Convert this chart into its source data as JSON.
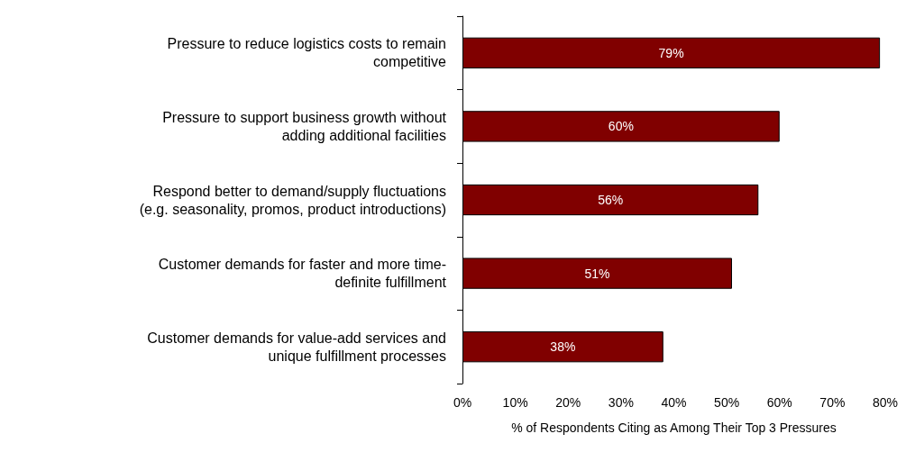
{
  "chart_data": {
    "type": "bar",
    "orientation": "horizontal",
    "categories": [
      "Pressure to reduce logistics costs to remain\ncompetitive",
      "Pressure to support business growth without\nadding additional facilities",
      "Respond better to demand/supply fluctuations\n(e.g. seasonality, promos, product introductions)",
      "Customer demands for faster and more time-\ndefinite fulfillment",
      "Customer demands for value-add services and\nunique fulfillment processes"
    ],
    "values": [
      79,
      60,
      56,
      51,
      38
    ],
    "value_labels": [
      "79%",
      "60%",
      "56%",
      "51%",
      "38%"
    ],
    "color": "#800000",
    "xlabel": "% of Respondents Citing as Among Their Top 3 Pressures",
    "xlim": [
      0,
      80
    ],
    "xticks": [
      {
        "value": 0,
        "label": "0%"
      },
      {
        "value": 10,
        "label": "10%"
      },
      {
        "value": 20,
        "label": "20%"
      },
      {
        "value": 30,
        "label": "30%"
      },
      {
        "value": 40,
        "label": "40%"
      },
      {
        "value": 50,
        "label": "50%"
      },
      {
        "value": 60,
        "label": "60%"
      },
      {
        "value": 70,
        "label": "70%"
      },
      {
        "value": 80,
        "label": "80%"
      }
    ],
    "grid": false
  }
}
